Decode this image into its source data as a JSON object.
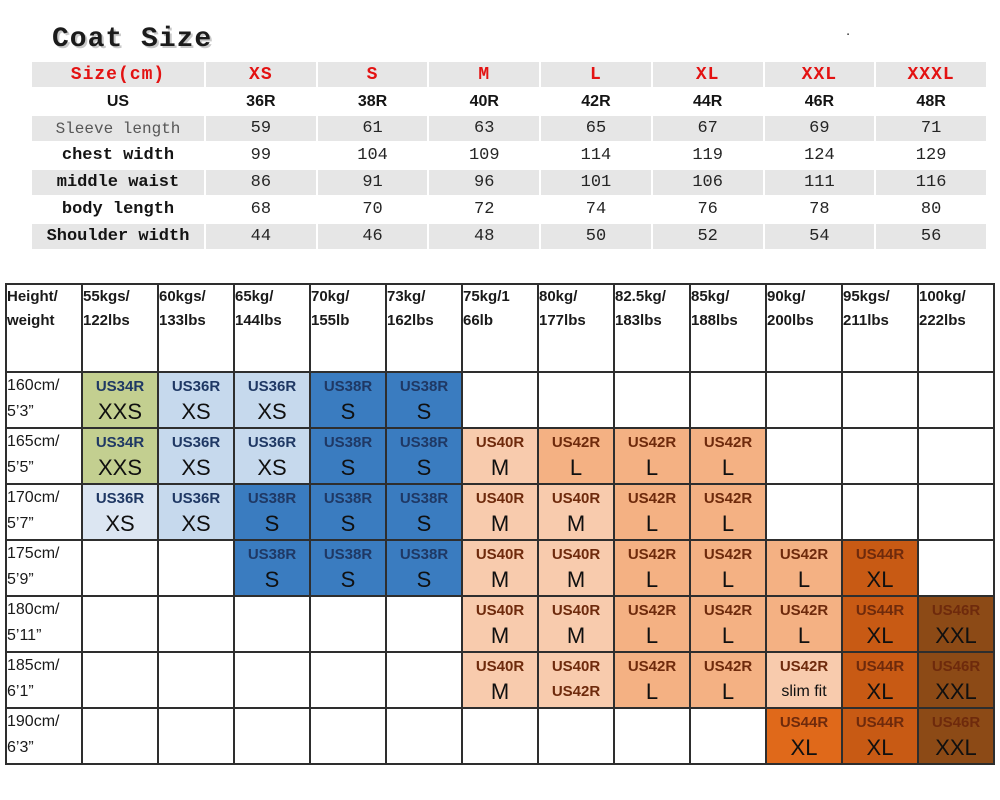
{
  "title": "Coat Size",
  "stray_mark": ".",
  "top_table": {
    "header": [
      "Size(cm)",
      "XS",
      "S",
      "M",
      "L",
      "XL",
      "XXL",
      "XXXL"
    ],
    "rows": [
      {
        "label": "US",
        "style": "us",
        "values": [
          "36R",
          "38R",
          "40R",
          "42R",
          "44R",
          "46R",
          "48R"
        ]
      },
      {
        "label": "Sleeve length",
        "style": "sleeve",
        "values": [
          "59",
          "61",
          "63",
          "65",
          "67",
          "69",
          "71"
        ]
      },
      {
        "label": "chest width",
        "style": "bold",
        "values": [
          "99",
          "104",
          "109",
          "114",
          "119",
          "124",
          "129"
        ]
      },
      {
        "label": "middle waist",
        "style": "bold",
        "values": [
          "86",
          "91",
          "96",
          "101",
          "106",
          "111",
          "116"
        ]
      },
      {
        "label": "body length",
        "style": "bold",
        "values": [
          "68",
          "70",
          "72",
          "74",
          "76",
          "78",
          "80"
        ]
      },
      {
        "label": "Shoulder width",
        "style": "bold",
        "values": [
          "44",
          "46",
          "48",
          "50",
          "52",
          "54",
          "56"
        ]
      }
    ]
  },
  "size_chart": {
    "corner": [
      "Height/",
      "weight"
    ],
    "weights": [
      [
        "55kgs/",
        "122lbs"
      ],
      [
        "60kgs/",
        "133lbs"
      ],
      [
        "65kg/",
        "144lbs"
      ],
      [
        "70kg/",
        "155lb"
      ],
      [
        "73kg/",
        "162lbs"
      ],
      [
        "75kg/1",
        "66lb"
      ],
      [
        "80kg/",
        "177lbs"
      ],
      [
        "82.5kg/",
        "183lbs"
      ],
      [
        "85kg/",
        "188lbs"
      ],
      [
        "90kg/",
        "200lbs"
      ],
      [
        "95kgs/",
        "211lbs"
      ],
      [
        "100kg/",
        "222lbs"
      ]
    ],
    "heights": [
      [
        "160cm/",
        "5’3”"
      ],
      [
        "165cm/",
        "5’5”"
      ],
      [
        "170cm/",
        "5’7”"
      ],
      [
        "175cm/",
        "5’9”"
      ],
      [
        "180cm/",
        "5’11”"
      ],
      [
        "185cm/",
        "6’1”"
      ],
      [
        "190cm/",
        "6’3”"
      ]
    ],
    "colors": {
      "green": "#c3cf90",
      "xslight": "#dce6f2",
      "xs": "#c6d9ed",
      "s": "#3a7cc0",
      "m": "#f8cbad",
      "l": "#f4b183",
      "xl": "#c85a14",
      "xlbright": "#e0691a",
      "xxl": "#8c4a16"
    },
    "text_colors": {
      "cool": "#1f3864",
      "warm": "#6e2a0c"
    },
    "cells": [
      [
        {
          "t": "US34R",
          "s": "XXS",
          "c": "green"
        },
        {
          "t": "US36R",
          "s": "XS",
          "c": "xs"
        },
        {
          "t": "US36R",
          "s": "XS",
          "c": "xs"
        },
        {
          "t": "US38R",
          "s": "S",
          "c": "s"
        },
        {
          "t": "US38R",
          "s": "S",
          "c": "s"
        },
        null,
        null,
        null,
        null,
        null,
        null,
        null
      ],
      [
        {
          "t": "US34R",
          "s": "XXS",
          "c": "green"
        },
        {
          "t": "US36R",
          "s": "XS",
          "c": "xs"
        },
        {
          "t": "US36R",
          "s": "XS",
          "c": "xs"
        },
        {
          "t": "US38R",
          "s": "S",
          "c": "s"
        },
        {
          "t": "US38R",
          "s": "S",
          "c": "s"
        },
        {
          "t": "US40R",
          "s": "M",
          "c": "m"
        },
        {
          "t": "US42R",
          "s": "L",
          "c": "l"
        },
        {
          "t": "US42R",
          "s": "L",
          "c": "l"
        },
        {
          "t": "US42R",
          "s": "L",
          "c": "l"
        },
        null,
        null,
        null
      ],
      [
        {
          "t": "US36R",
          "s": "XS",
          "c": "xslight"
        },
        {
          "t": "US36R",
          "s": "XS",
          "c": "xs"
        },
        {
          "t": "US38R",
          "s": "S",
          "c": "s"
        },
        {
          "t": "US38R",
          "s": "S",
          "c": "s"
        },
        {
          "t": "US38R",
          "s": "S",
          "c": "s"
        },
        {
          "t": "US40R",
          "s": "M",
          "c": "m"
        },
        {
          "t": "US40R",
          "s": "M",
          "c": "m"
        },
        {
          "t": "US42R",
          "s": "L",
          "c": "l"
        },
        {
          "t": "US42R",
          "s": "L",
          "c": "l"
        },
        null,
        null,
        null
      ],
      [
        null,
        null,
        {
          "t": "US38R",
          "s": "S",
          "c": "s"
        },
        {
          "t": "US38R",
          "s": "S",
          "c": "s"
        },
        {
          "t": "US38R",
          "s": "S",
          "c": "s"
        },
        {
          "t": "US40R",
          "s": "M",
          "c": "m"
        },
        {
          "t": "US40R",
          "s": "M",
          "c": "m"
        },
        {
          "t": "US42R",
          "s": "L",
          "c": "l"
        },
        {
          "t": "US42R",
          "s": "L",
          "c": "l"
        },
        {
          "t": "US42R",
          "s": "L",
          "c": "l"
        },
        {
          "t": "US44R",
          "s": "XL",
          "c": "xl"
        },
        null
      ],
      [
        null,
        null,
        null,
        null,
        null,
        {
          "t": "US40R",
          "s": "M",
          "c": "m"
        },
        {
          "t": "US40R",
          "s": "M",
          "c": "m"
        },
        {
          "t": "US42R",
          "s": "L",
          "c": "l"
        },
        {
          "t": "US42R",
          "s": "L",
          "c": "l"
        },
        {
          "t": "US42R",
          "s": "L",
          "c": "l"
        },
        {
          "t": "US44R",
          "s": "XL",
          "c": "xl"
        },
        {
          "t": "US46R",
          "s": "XXL",
          "c": "xxl"
        }
      ],
      [
        null,
        null,
        null,
        null,
        null,
        {
          "t": "US40R",
          "s": "M",
          "c": "m"
        },
        {
          "t": "US40R",
          "s": "US42R",
          "c": "m"
        },
        {
          "t": "US42R",
          "s": "L",
          "c": "l"
        },
        {
          "t": "US42R",
          "s": "L",
          "c": "l"
        },
        {
          "t": "US42R",
          "s": "slim fit",
          "c": "m"
        },
        {
          "t": "US44R",
          "s": "XL",
          "c": "xl"
        },
        {
          "t": "US46R",
          "s": "XXL",
          "c": "xxl"
        }
      ],
      [
        null,
        null,
        null,
        null,
        null,
        null,
        null,
        null,
        null,
        {
          "t": "US44R",
          "s": "XL",
          "c": "xlbright"
        },
        {
          "t": "US44R",
          "s": "XL",
          "c": "xl"
        },
        {
          "t": "US46R",
          "s": "XXL",
          "c": "xxl"
        }
      ]
    ]
  }
}
